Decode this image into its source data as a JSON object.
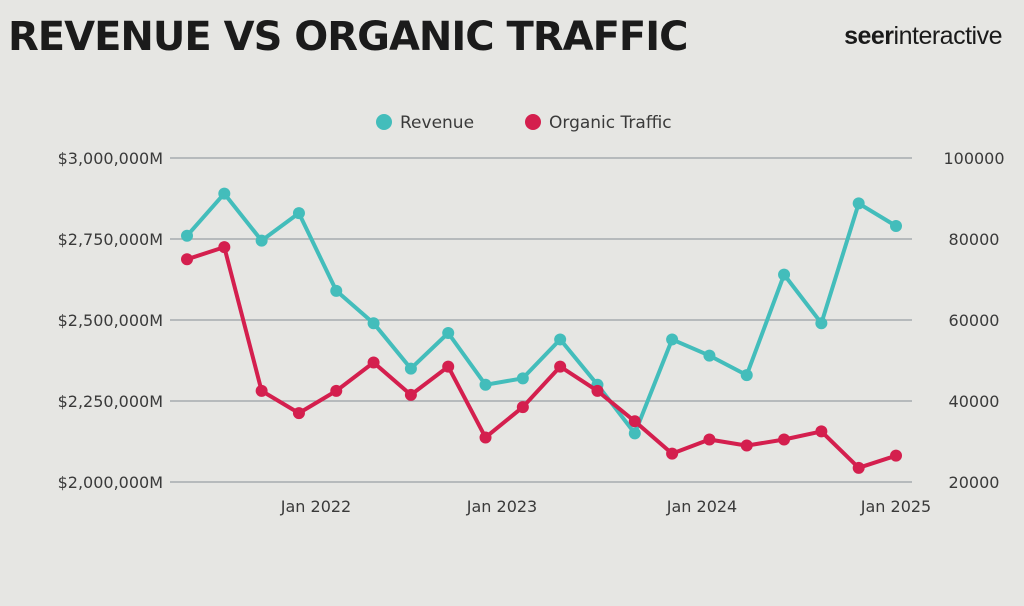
{
  "header": {
    "title": "REVENUE VS ORGANIC TRAFFIC",
    "logo_bold": "seer",
    "logo_rest": "interactive"
  },
  "colors": {
    "revenue": "#43bdbb",
    "traffic": "#d41f4e",
    "grid": "#9aa1a5",
    "background": "#e6e6e3"
  },
  "chart_data": {
    "type": "line",
    "title": "REVENUE VS ORGANIC TRAFFIC",
    "legend_position": "top-center",
    "x_ticks": [
      "Jan 2022",
      "Jan 2023",
      "Jan 2024",
      "Jan 2025"
    ],
    "y_left": {
      "ticks": [
        "$2,000,000M",
        "$2,250,000M",
        "$2,500,000M",
        "$2,750,000M",
        "$3,000,000M"
      ],
      "range": [
        2000000,
        3000000
      ]
    },
    "y_right": {
      "ticks": [
        "20000",
        "40000",
        "60000",
        "80000",
        "100000"
      ],
      "range": [
        20000,
        100000
      ]
    },
    "series": [
      {
        "name": "Revenue",
        "axis": "left",
        "color": "#43bdbb",
        "values": [
          2760000,
          2890000,
          2745000,
          2830000,
          2590000,
          2490000,
          2350000,
          2460000,
          2300000,
          2320000,
          2440000,
          2300000,
          2150000,
          2440000,
          2390000,
          2330000,
          2640000,
          2490000,
          2860000,
          2790000
        ]
      },
      {
        "name": "Organic Traffic",
        "axis": "right",
        "color": "#d41f4e",
        "values": [
          75000,
          78000,
          42500,
          37000,
          42500,
          49500,
          41500,
          48500,
          31000,
          38500,
          48500,
          42500,
          35000,
          27000,
          30500,
          29000,
          30500,
          32500,
          23500,
          26500
        ]
      }
    ]
  }
}
